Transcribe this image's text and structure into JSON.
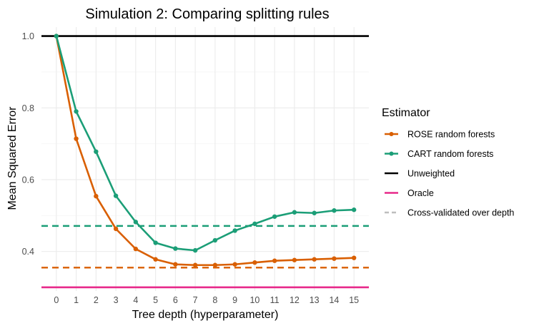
{
  "chart_data": {
    "type": "line",
    "title": "Simulation 2: Comparing splitting rules",
    "xlabel": "Tree depth (hyperparameter)",
    "ylabel": "Mean Squared Error",
    "x": [
      0,
      1,
      2,
      3,
      4,
      5,
      6,
      7,
      8,
      9,
      10,
      11,
      12,
      13,
      14,
      15
    ],
    "xlim": [
      -0.75,
      15.75
    ],
    "ylim": [
      0.29,
      1.025
    ],
    "yticks": [
      0.4,
      0.6,
      0.8,
      1.0
    ],
    "ytick_labels": [
      "0.4",
      "0.6",
      "0.8",
      "1.0"
    ],
    "legend_title": "Estimator",
    "legend_position": "right",
    "series": [
      {
        "name": "ROSE random forests",
        "color": "#d95f02",
        "style": "line-points",
        "values": [
          1.0,
          0.714,
          0.554,
          0.463,
          0.407,
          0.378,
          0.364,
          0.362,
          0.362,
          0.364,
          0.369,
          0.374,
          0.376,
          0.378,
          0.38,
          0.382
        ]
      },
      {
        "name": "CART random forests",
        "color": "#1b9e77",
        "style": "line-points",
        "values": [
          1.0,
          0.79,
          0.678,
          0.555,
          0.482,
          0.424,
          0.408,
          0.403,
          0.431,
          0.458,
          0.477,
          0.497,
          0.509,
          0.507,
          0.514,
          0.516
        ]
      },
      {
        "name": "Unweighted",
        "color": "#000000",
        "style": "hline",
        "value": 1.0
      },
      {
        "name": "Oracle",
        "color": "#e7298a",
        "style": "hline",
        "value": 0.3
      },
      {
        "name": "Cross-validated over depth",
        "color": "#bebebe",
        "style": "dashed-hline",
        "lines": [
          {
            "value": 0.471,
            "color": "#1b9e77"
          },
          {
            "value": 0.355,
            "color": "#d95f02"
          }
        ]
      }
    ]
  }
}
